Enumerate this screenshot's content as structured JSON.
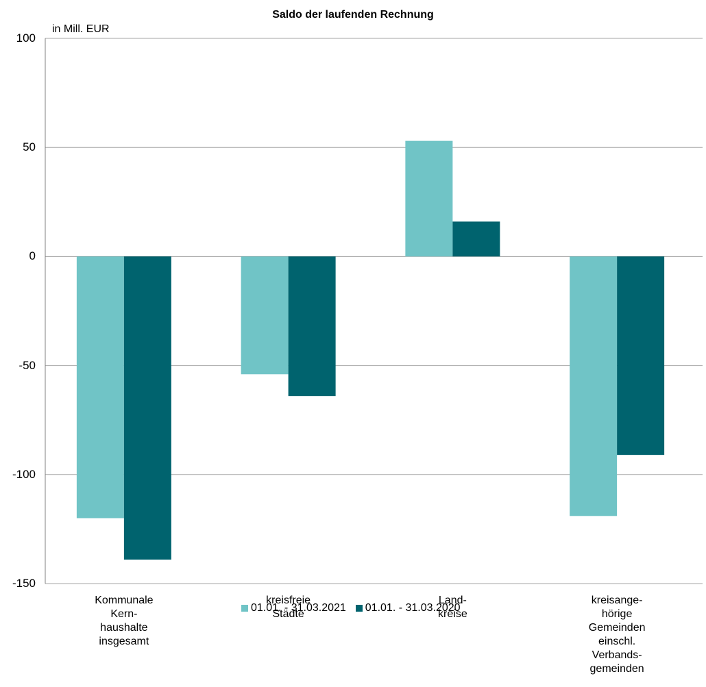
{
  "chart_data": {
    "type": "bar",
    "title": "Saldo der laufenden Rechnung",
    "ylabel": "in Mill. EUR",
    "ylim": [
      -150,
      100
    ],
    "yticks": [
      100,
      50,
      0,
      -50,
      -100,
      -150
    ],
    "grid": true,
    "legend_position": "bottom",
    "categories": [
      "Kommunale\nKern-\nhaushalte\ninsgesamt",
      "kreisfreie\nStädte",
      "Land-\nkreise",
      "kreisange-\nhörige\nGemeinden\neinschl.\nVerbands-\ngemeinden"
    ],
    "series": [
      {
        "name": "01.01. - 31.03.2021",
        "color": "#70c4c6",
        "values": [
          -120,
          -54,
          53,
          -119
        ]
      },
      {
        "name": "01.01. - 31.03.2020",
        "color": "#00636e",
        "values": [
          -139,
          -64,
          16,
          -91
        ]
      }
    ]
  }
}
